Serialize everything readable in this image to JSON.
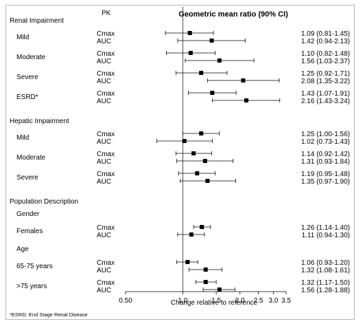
{
  "chart_data": {
    "type": "forest",
    "header_pk": "PK",
    "header_ci": "Geometric mean ratio (90% CI)",
    "xlabel": "Change relative to reference",
    "x_scale": "log",
    "xlim": [
      0.5,
      3.5
    ],
    "x_ticks": [
      0.5,
      1.0,
      1.5,
      2.0,
      2.5,
      3.0,
      3.5
    ],
    "x_tick_labels": [
      "0.50",
      "1.0",
      "1.5",
      "2.0",
      "2.5",
      "3.0",
      "3.5"
    ],
    "reference_line": 1.0,
    "footnote": "*ESRD: End Stage Renal Disease",
    "rows": [
      {
        "label": "Renal Impairment",
        "kind": "section"
      },
      {
        "label": "Mild",
        "kind": "group",
        "pk": "Cmax",
        "est": 1.09,
        "lo": 0.81,
        "hi": 1.45,
        "text": "1.09 (0.81-1.45)"
      },
      {
        "label": "",
        "kind": "sub",
        "pk": "AUC",
        "est": 1.42,
        "lo": 0.94,
        "hi": 2.13,
        "text": "1.42 (0.94-2.13)"
      },
      {
        "label": "Moderate",
        "kind": "group",
        "pk": "Cmax",
        "est": 1.1,
        "lo": 0.82,
        "hi": 1.48,
        "text": "1.10 (0.82-1.48)"
      },
      {
        "label": "",
        "kind": "sub",
        "pk": "AUC",
        "est": 1.56,
        "lo": 1.03,
        "hi": 2.37,
        "text": "1.56 (1.03-2.37)"
      },
      {
        "label": "Severe",
        "kind": "group",
        "pk": "Cmax",
        "est": 1.25,
        "lo": 0.92,
        "hi": 1.71,
        "text": "1.25 (0.92-1.71)"
      },
      {
        "label": "",
        "kind": "sub",
        "pk": "AUC",
        "est": 2.08,
        "lo": 1.35,
        "hi": 3.22,
        "text": "2.08 (1.35-3.22)"
      },
      {
        "label": "ESRD*",
        "kind": "group",
        "pk": "Cmax",
        "est": 1.43,
        "lo": 1.07,
        "hi": 1.91,
        "text": "1.43 (1.07-1.91)"
      },
      {
        "label": "",
        "kind": "sub",
        "pk": "AUC",
        "est": 2.16,
        "lo": 1.43,
        "hi": 3.24,
        "text": "2.16 (1.43-3.24)"
      },
      {
        "label": "Hepatic Impairment",
        "kind": "section"
      },
      {
        "label": "Mild",
        "kind": "group",
        "pk": "Cmax",
        "est": 1.25,
        "lo": 1.0,
        "hi": 1.56,
        "text": "1.25 (1.00-1.56)"
      },
      {
        "label": "",
        "kind": "sub",
        "pk": "AUC",
        "est": 1.02,
        "lo": 0.73,
        "hi": 1.43,
        "text": "1.02 (0.73-1.43)"
      },
      {
        "label": "Moderate",
        "kind": "group",
        "pk": "Cmax",
        "est": 1.14,
        "lo": 0.92,
        "hi": 1.42,
        "text": "1.14 (0.92-1.42)"
      },
      {
        "label": "",
        "kind": "sub",
        "pk": "AUC",
        "est": 1.31,
        "lo": 0.93,
        "hi": 1.84,
        "text": "1.31 (0.93-1.84)"
      },
      {
        "label": "Severe",
        "kind": "group",
        "pk": "Cmax",
        "est": 1.19,
        "lo": 0.95,
        "hi": 1.48,
        "text": "1.19 (0.95-1.48)"
      },
      {
        "label": "",
        "kind": "sub",
        "pk": "AUC",
        "est": 1.35,
        "lo": 0.97,
        "hi": 1.9,
        "text": "1.35 (0.97-1.90)"
      },
      {
        "label": "Population Description",
        "kind": "section"
      },
      {
        "label": "Gender",
        "kind": "subsection"
      },
      {
        "label": "Females",
        "kind": "group",
        "pk": "Cmax",
        "est": 1.26,
        "lo": 1.14,
        "hi": 1.4,
        "text": "1.26 (1.14-1.40)"
      },
      {
        "label": "",
        "kind": "sub",
        "pk": "AUC",
        "est": 1.11,
        "lo": 0.94,
        "hi": 1.3,
        "text": "1.11 (0.94-1.30)"
      },
      {
        "label": "Age",
        "kind": "subsection"
      },
      {
        "label": "65-75 years",
        "kind": "group",
        "pk": "Cmax",
        "est": 1.06,
        "lo": 0.93,
        "hi": 1.2,
        "text": "1.06 (0.93-1.20)"
      },
      {
        "label": "",
        "kind": "sub",
        "pk": "AUC",
        "est": 1.32,
        "lo": 1.08,
        "hi": 1.61,
        "text": "1.32 (1.08-1.61)"
      },
      {
        "label": ">75 years",
        "kind": "group",
        "pk": "Cmax",
        "est": 1.32,
        "lo": 1.17,
        "hi": 1.5,
        "text": "1.32 (1.17-1.50)"
      },
      {
        "label": "",
        "kind": "sub",
        "pk": "AUC",
        "est": 1.56,
        "lo": 1.28,
        "hi": 1.88,
        "text": "1.56 (1.28-1.88)"
      }
    ]
  }
}
